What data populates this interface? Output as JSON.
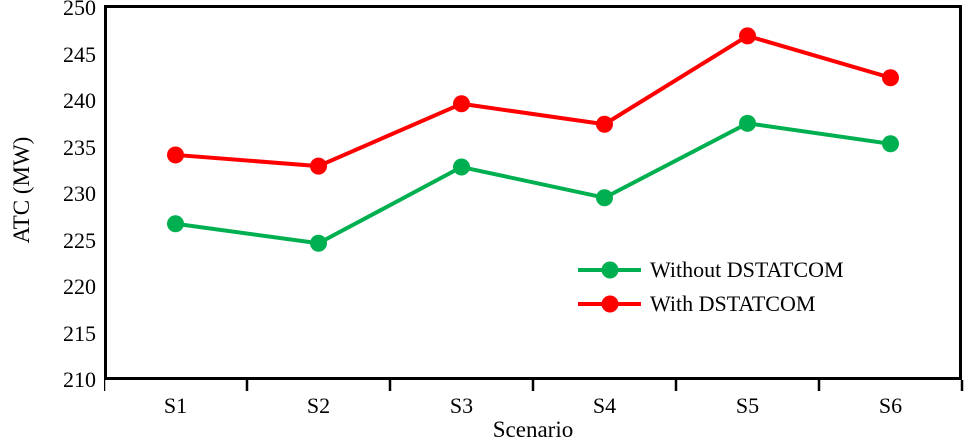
{
  "chart_data": {
    "type": "line",
    "title": "",
    "xlabel": "Scenario",
    "ylabel": "ATC (MW)",
    "categories": [
      "S1",
      "S2",
      "S3",
      "S4",
      "S5",
      "S6"
    ],
    "series": [
      {
        "name": "Without DSTATCOM",
        "color": "#00B050",
        "values": [
          226.8,
          224.7,
          232.9,
          229.6,
          237.6,
          235.4
        ]
      },
      {
        "name": "With DSTATCOM",
        "color": "#FF0000",
        "values": [
          234.2,
          233.0,
          239.7,
          237.5,
          247.0,
          242.5
        ]
      }
    ],
    "ylim": [
      210,
      250
    ],
    "yticks": [
      250,
      245,
      240,
      235,
      230,
      225,
      220,
      215,
      210
    ],
    "grid": false,
    "legend_position": "inside-lower-right",
    "marker": "circle",
    "axis_color": "#000000",
    "background": "#FFFFFF"
  }
}
